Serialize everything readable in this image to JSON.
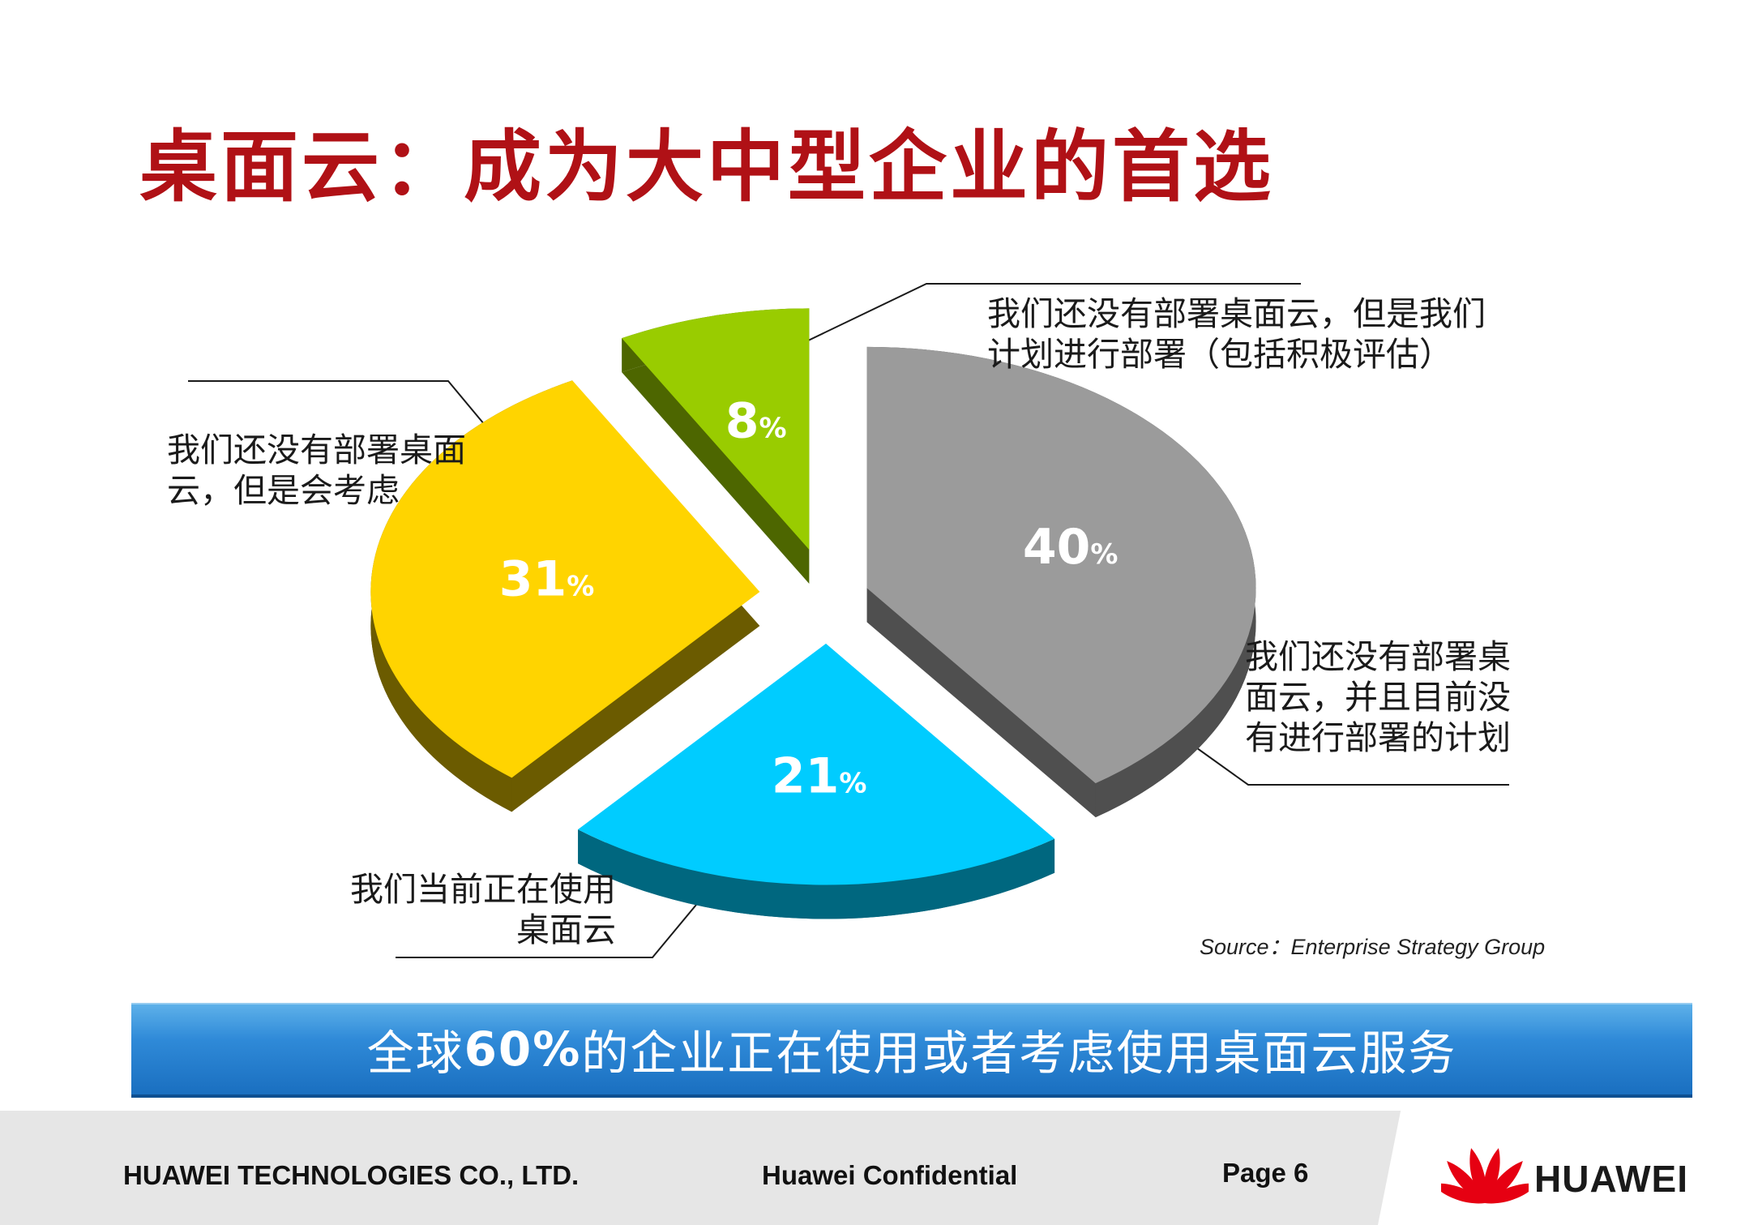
{
  "title": "桌面云：成为大中型企业的首选",
  "title_color": "#b01116",
  "chart_data": {
    "type": "pie",
    "slices": [
      {
        "label": "我们还没有部署桌面云，并且目前没有进行部署的计划",
        "label_lines": [
          "我们还没有部署桌",
          "面云，并且目前没",
          "有进行部署的计划"
        ],
        "value": 40,
        "color": "#9b9b9b",
        "side_color": "#4f4f4f"
      },
      {
        "label": "我们当前正在使用桌面云",
        "label_lines": [
          "我们当前正在使用",
          "桌面云"
        ],
        "value": 21,
        "color": "#00ccff",
        "side_color": "#00677f"
      },
      {
        "label": "我们还没有部署桌面云，但是会考虑",
        "label_lines": [
          "我们还没有部署桌面",
          "云，但是会考虑"
        ],
        "value": 31,
        "color": "#ffd400",
        "side_color": "#6b5b00"
      },
      {
        "label": "我们还没有部署桌面云，但是我们计划进行部署（包括积极评估）",
        "label_lines": [
          "我们还没有部署桌面云，但是我们",
          "计划进行部署（包括积极评估）"
        ],
        "value": 8,
        "color": "#99cc00",
        "side_color": "#4d6600"
      }
    ],
    "value_suffix": "%"
  },
  "source": "Source：Enterprise Strategy Group",
  "banner": {
    "prefix": "全球",
    "highlight": "60%",
    "suffix": "的企业正在使用或者考虑使用桌面云服务"
  },
  "footer": {
    "company": "HUAWEI TECHNOLOGIES CO., LTD.",
    "confidential": "Huawei Confidential",
    "page": "Page 6",
    "logo_text": "HUAWEI"
  },
  "logo_color": "#e60012"
}
